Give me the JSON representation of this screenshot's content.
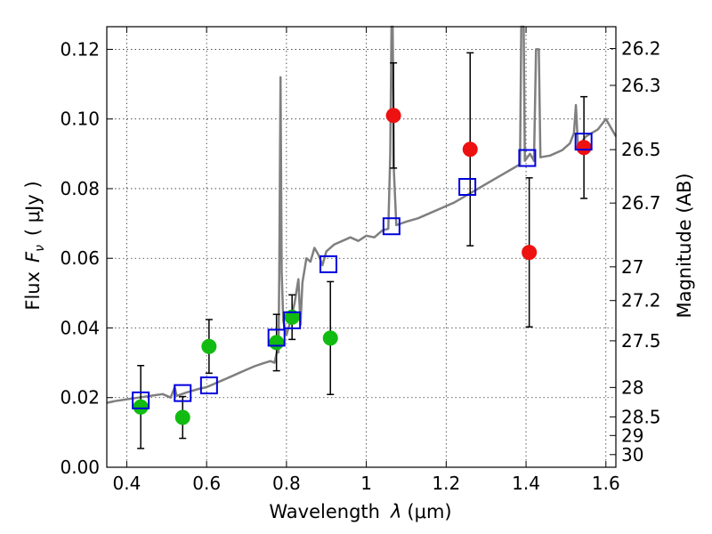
{
  "chart_data": {
    "type": "scatter",
    "xlabel_prefix": "Wavelength",
    "xlabel_var": "λ",
    "xlabel_unit": "(μm)",
    "ylabel_left_prefix": "Flux",
    "ylabel_left_var": "F",
    "ylabel_left_sub": "ν",
    "ylabel_left_unit": "( μJy )",
    "ylabel_right": "Magnitude (AB)",
    "xlim": [
      0.35,
      1.625
    ],
    "ylim": [
      0.0,
      0.1265
    ],
    "grid": true,
    "x_ticks": [
      {
        "value": 0.4,
        "label": "0.4"
      },
      {
        "value": 0.6,
        "label": "0.6"
      },
      {
        "value": 0.8,
        "label": "0.8"
      },
      {
        "value": 1.0,
        "label": "1"
      },
      {
        "value": 1.2,
        "label": "1.2"
      },
      {
        "value": 1.4,
        "label": "1.4"
      },
      {
        "value": 1.6,
        "label": "1.6"
      }
    ],
    "y_ticks": [
      {
        "value": 0.0,
        "label": "0.00"
      },
      {
        "value": 0.02,
        "label": "0.02"
      },
      {
        "value": 0.04,
        "label": "0.04"
      },
      {
        "value": 0.06,
        "label": "0.06"
      },
      {
        "value": 0.08,
        "label": "0.08"
      },
      {
        "value": 0.1,
        "label": "0.10"
      },
      {
        "value": 0.12,
        "label": "0.12"
      }
    ],
    "mag_ticks": [
      {
        "value": 26.2,
        "label": "26.2"
      },
      {
        "value": 26.3,
        "label": "26.3"
      },
      {
        "value": 26.5,
        "label": "26.5"
      },
      {
        "value": 26.7,
        "label": "26.7"
      },
      {
        "value": 27.0,
        "label": "27"
      },
      {
        "value": 27.2,
        "label": "27.2"
      },
      {
        "value": 27.5,
        "label": "27.5"
      },
      {
        "value": 28.0,
        "label": "28"
      },
      {
        "value": 28.5,
        "label": "28.5"
      },
      {
        "value": 29.0,
        "label": "29"
      },
      {
        "value": 30.0,
        "label": "30"
      }
    ],
    "colors": {
      "model": "#7f7f7f",
      "green": "#11bb11",
      "red": "#ee1111",
      "square": "#0000dd",
      "errorbar": "#000000"
    },
    "model_spectrum": [
      [
        0.35,
        0.0185
      ],
      [
        0.37,
        0.019
      ],
      [
        0.4,
        0.0195
      ],
      [
        0.43,
        0.02
      ],
      [
        0.46,
        0.0205
      ],
      [
        0.49,
        0.021
      ],
      [
        0.51,
        0.02
      ],
      [
        0.52,
        0.023
      ],
      [
        0.525,
        0.0205
      ],
      [
        0.55,
        0.0215
      ],
      [
        0.58,
        0.0225
      ],
      [
        0.6,
        0.023
      ],
      [
        0.62,
        0.024
      ],
      [
        0.64,
        0.025
      ],
      [
        0.66,
        0.026
      ],
      [
        0.68,
        0.027
      ],
      [
        0.7,
        0.028
      ],
      [
        0.72,
        0.029
      ],
      [
        0.74,
        0.0298
      ],
      [
        0.76,
        0.0305
      ],
      [
        0.77,
        0.03
      ],
      [
        0.778,
        0.034
      ],
      [
        0.78,
        0.033
      ],
      [
        0.782,
        0.056
      ],
      [
        0.785,
        0.112
      ],
      [
        0.788,
        0.056
      ],
      [
        0.792,
        0.042
      ],
      [
        0.8,
        0.038
      ],
      [
        0.81,
        0.042
      ],
      [
        0.82,
        0.047
      ],
      [
        0.83,
        0.054
      ],
      [
        0.835,
        0.041
      ],
      [
        0.84,
        0.053
      ],
      [
        0.85,
        0.06
      ],
      [
        0.86,
        0.059
      ],
      [
        0.87,
        0.063
      ],
      [
        0.88,
        0.061
      ],
      [
        0.89,
        0.058
      ],
      [
        0.9,
        0.062
      ],
      [
        0.92,
        0.064
      ],
      [
        0.94,
        0.065
      ],
      [
        0.96,
        0.066
      ],
      [
        0.98,
        0.065
      ],
      [
        1.0,
        0.0665
      ],
      [
        1.02,
        0.066
      ],
      [
        1.04,
        0.068
      ],
      [
        1.055,
        0.0685
      ],
      [
        1.06,
        0.09
      ],
      [
        1.063,
        0.1265
      ],
      [
        1.066,
        0.1265
      ],
      [
        1.069,
        0.085
      ],
      [
        1.075,
        0.0695
      ],
      [
        1.1,
        0.0705
      ],
      [
        1.13,
        0.0715
      ],
      [
        1.16,
        0.073
      ],
      [
        1.19,
        0.0745
      ],
      [
        1.22,
        0.076
      ],
      [
        1.25,
        0.078
      ],
      [
        1.28,
        0.08
      ],
      [
        1.31,
        0.082
      ],
      [
        1.34,
        0.084
      ],
      [
        1.37,
        0.086
      ],
      [
        1.385,
        0.087
      ],
      [
        1.388,
        0.1265
      ],
      [
        1.394,
        0.1265
      ],
      [
        1.397,
        0.088
      ],
      [
        1.41,
        0.09
      ],
      [
        1.42,
        0.088
      ],
      [
        1.425,
        0.12
      ],
      [
        1.432,
        0.12
      ],
      [
        1.436,
        0.089
      ],
      [
        1.46,
        0.0895
      ],
      [
        1.49,
        0.091
      ],
      [
        1.51,
        0.093
      ],
      [
        1.52,
        0.096
      ],
      [
        1.525,
        0.104
      ],
      [
        1.53,
        0.092
      ],
      [
        1.55,
        0.095
      ],
      [
        1.58,
        0.097
      ],
      [
        1.6,
        0.1
      ],
      [
        1.625,
        0.095
      ]
    ],
    "series": [
      {
        "name": "green photometry",
        "marker": "circle",
        "color": "#11bb11",
        "points": [
          {
            "x": 0.435,
            "y": 0.0173,
            "err": 0.0119
          },
          {
            "x": 0.54,
            "y": 0.0143,
            "err": 0.006
          },
          {
            "x": 0.606,
            "y": 0.0347,
            "err": 0.0077
          },
          {
            "x": 0.775,
            "y": 0.0358,
            "err": 0.0081
          },
          {
            "x": 0.814,
            "y": 0.0431,
            "err": 0.0064
          },
          {
            "x": 0.91,
            "y": 0.0371,
            "err": 0.0162
          }
        ]
      },
      {
        "name": "red photometry",
        "marker": "circle",
        "color": "#ee1111",
        "points": [
          {
            "x": 1.068,
            "y": 0.101,
            "err": 0.0151
          },
          {
            "x": 1.26,
            "y": 0.0913,
            "err": 0.0277
          },
          {
            "x": 1.408,
            "y": 0.0617,
            "err": 0.0214
          },
          {
            "x": 1.545,
            "y": 0.0918,
            "err": 0.0146
          }
        ]
      },
      {
        "name": "model band fluxes",
        "marker": "open-square",
        "color": "#0000dd",
        "points": [
          {
            "x": 0.435,
            "y": 0.0192
          },
          {
            "x": 0.54,
            "y": 0.0213
          },
          {
            "x": 0.606,
            "y": 0.0235
          },
          {
            "x": 0.775,
            "y": 0.0372
          },
          {
            "x": 0.814,
            "y": 0.0422
          },
          {
            "x": 0.905,
            "y": 0.0583
          },
          {
            "x": 1.063,
            "y": 0.0692
          },
          {
            "x": 1.253,
            "y": 0.0805
          },
          {
            "x": 1.403,
            "y": 0.0888
          },
          {
            "x": 1.544,
            "y": 0.0935
          }
        ]
      }
    ]
  }
}
